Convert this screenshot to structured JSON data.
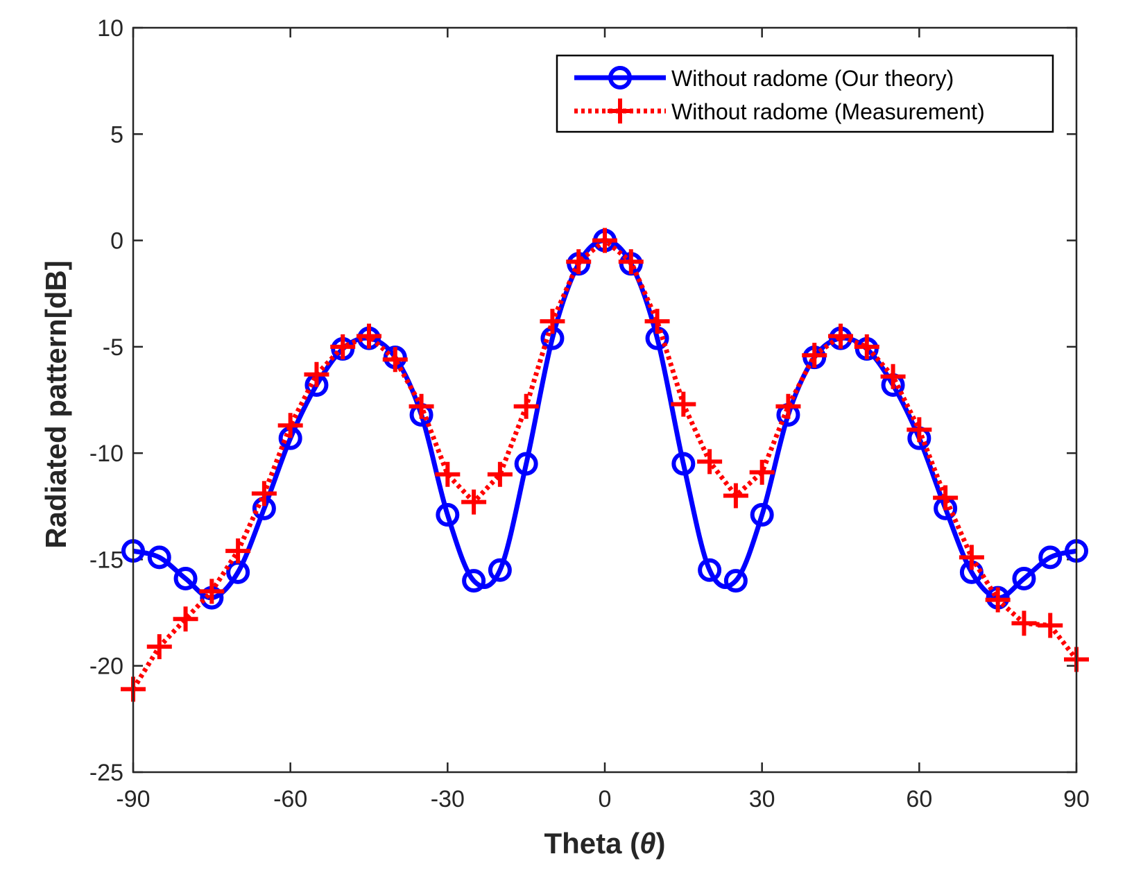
{
  "colors": {
    "theory": "#0000ff",
    "measurement": "#ff0000",
    "axis": "#262626"
  },
  "chart_data": {
    "type": "line",
    "xlabel": "Theta",
    "xlabel_symbol": "θ",
    "ylabel": "Radiated pattern[dB]",
    "xlim": [
      -90,
      90
    ],
    "ylim": [
      -25,
      10
    ],
    "xticks": [
      -90,
      -60,
      -30,
      0,
      30,
      60,
      90
    ],
    "yticks": [
      10,
      5,
      0,
      -5,
      -10,
      -15,
      -20,
      -25
    ],
    "xtick_labels": [
      "-90",
      "-60",
      "-30",
      "0",
      "30",
      "60",
      "90"
    ],
    "ytick_labels": [
      "10",
      "5",
      "0",
      "-5",
      "-10",
      "-15",
      "-20",
      "-25"
    ],
    "grid": false,
    "legend_position": "top-right",
    "series": [
      {
        "name": "Without radome (Our theory)",
        "style": "solid-circle",
        "x": [
          -90,
          -85,
          -80,
          -75,
          -70,
          -65,
          -60,
          -55,
          -50,
          -45,
          -40,
          -35,
          -30,
          -25,
          -20,
          -15,
          -10,
          -5,
          0,
          5,
          10,
          15,
          20,
          25,
          30,
          35,
          40,
          45,
          50,
          55,
          60,
          65,
          70,
          75,
          80,
          85,
          90
        ],
        "y": [
          -14.6,
          -14.9,
          -15.9,
          -16.8,
          -15.6,
          -12.6,
          -9.3,
          -6.8,
          -5.1,
          -4.6,
          -5.5,
          -8.2,
          -12.9,
          -16.0,
          -15.5,
          -10.5,
          -4.6,
          -1.1,
          0.0,
          -1.1,
          -4.6,
          -10.5,
          -15.5,
          -16.0,
          -12.9,
          -8.2,
          -5.5,
          -4.6,
          -5.1,
          -6.8,
          -9.3,
          -12.6,
          -15.6,
          -16.8,
          -15.9,
          -14.9,
          -14.6
        ]
      },
      {
        "name": "Without radome (Measurement)",
        "style": "dotted-plus",
        "x": [
          -90,
          -85,
          -80,
          -75,
          -70,
          -65,
          -60,
          -55,
          -50,
          -45,
          -40,
          -35,
          -30,
          -25,
          -20,
          -15,
          -10,
          -5,
          0,
          5,
          10,
          15,
          20,
          25,
          30,
          35,
          40,
          45,
          50,
          55,
          60,
          65,
          70,
          75,
          80,
          85,
          90
        ],
        "y": [
          -21.1,
          -19.1,
          -17.8,
          -16.5,
          -14.6,
          -11.9,
          -8.7,
          -6.3,
          -5.0,
          -4.5,
          -5.6,
          -7.8,
          -11.0,
          -12.3,
          -11.0,
          -7.8,
          -3.8,
          -1.0,
          0.0,
          -1.0,
          -3.8,
          -7.7,
          -10.4,
          -12.0,
          -10.9,
          -7.8,
          -5.4,
          -4.5,
          -5.0,
          -6.4,
          -8.9,
          -12.1,
          -14.9,
          -16.9,
          -18.0,
          -18.1,
          -19.7
        ]
      }
    ]
  }
}
